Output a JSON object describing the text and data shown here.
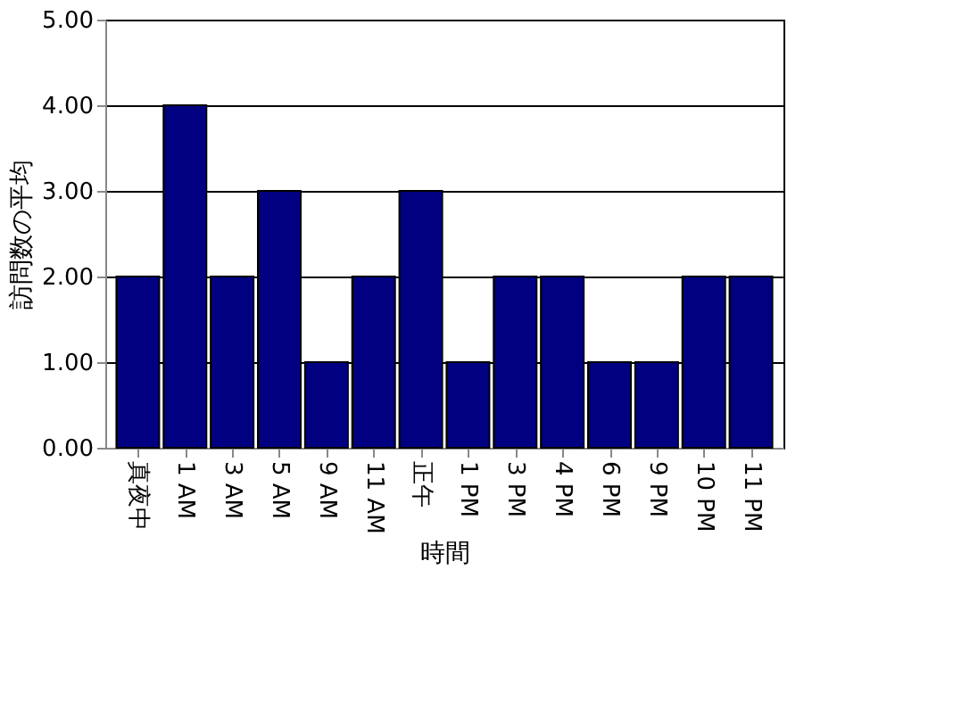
{
  "chart_data": {
    "type": "bar",
    "xlabel": "時間",
    "ylabel": "訪問数の平均",
    "categories": [
      "真夜中",
      "1 AM",
      "3 AM",
      "5 AM",
      "9 AM",
      "11 AM",
      "正午",
      "1 PM",
      "3 PM",
      "4 PM",
      "6 PM",
      "9 PM",
      "10 PM",
      "11 PM"
    ],
    "values": [
      2,
      4,
      2,
      3,
      1,
      2,
      3,
      1,
      2,
      2,
      1,
      1,
      2,
      2
    ],
    "color": "#000080",
    "ylim": [
      0,
      5
    ],
    "yticks": [
      {
        "value": 0,
        "label": "0.00"
      },
      {
        "value": 1,
        "label": "1.00"
      },
      {
        "value": 2,
        "label": "2.00"
      },
      {
        "value": 3,
        "label": "3.00"
      },
      {
        "value": 4,
        "label": "4.00"
      },
      {
        "value": 5,
        "label": "5.00"
      }
    ],
    "grid": "y"
  }
}
